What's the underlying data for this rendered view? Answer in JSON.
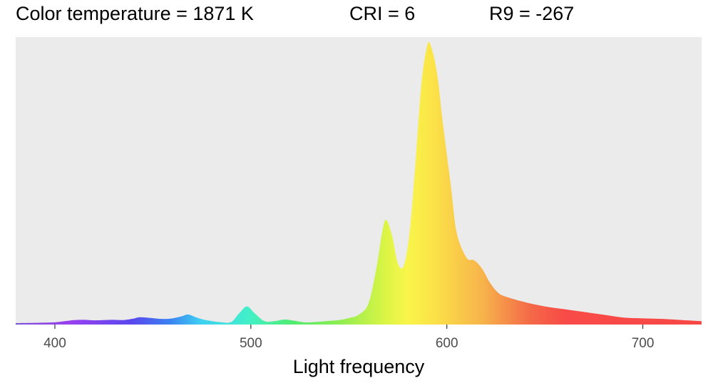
{
  "header": {
    "color_temperature": "Color temperature = 1871 K",
    "cri": "CRI = 6",
    "r9": "R9 = -267"
  },
  "chart_data": {
    "type": "area",
    "title": "",
    "xlabel": "Light frequency",
    "ylabel": "",
    "xlim": [
      380,
      730
    ],
    "ylim": [
      0,
      1.03
    ],
    "x_ticks": [
      400,
      500,
      600,
      700
    ],
    "grid": false,
    "legend": "none",
    "panel_background": "#ebebeb",
    "fill": "wavelength-colored spectrum gradient",
    "x": [
      380,
      390,
      400,
      405,
      410,
      415,
      420,
      425,
      430,
      435,
      440,
      443,
      448,
      455,
      460,
      465,
      468,
      472,
      477,
      485,
      490,
      494,
      498,
      502,
      507,
      512,
      517,
      522,
      527,
      533,
      540,
      545,
      550,
      555,
      560,
      564,
      567,
      569,
      572,
      575,
      578,
      581,
      584,
      587,
      590,
      592,
      595,
      598,
      602,
      605,
      610,
      614,
      618,
      622,
      626,
      630,
      640,
      650,
      660,
      670,
      680,
      690,
      700,
      710,
      720,
      730
    ],
    "values": [
      0.005,
      0.006,
      0.008,
      0.012,
      0.016,
      0.017,
      0.015,
      0.016,
      0.017,
      0.016,
      0.021,
      0.026,
      0.024,
      0.02,
      0.022,
      0.03,
      0.036,
      0.026,
      0.016,
      0.008,
      0.009,
      0.04,
      0.065,
      0.04,
      0.012,
      0.012,
      0.018,
      0.014,
      0.008,
      0.009,
      0.013,
      0.016,
      0.023,
      0.035,
      0.075,
      0.2,
      0.33,
      0.375,
      0.32,
      0.22,
      0.21,
      0.33,
      0.58,
      0.86,
      1.0,
      0.995,
      0.9,
      0.72,
      0.5,
      0.33,
      0.24,
      0.23,
      0.2,
      0.15,
      0.115,
      0.1,
      0.08,
      0.065,
      0.055,
      0.045,
      0.035,
      0.025,
      0.022,
      0.02,
      0.016,
      0.012
    ]
  }
}
